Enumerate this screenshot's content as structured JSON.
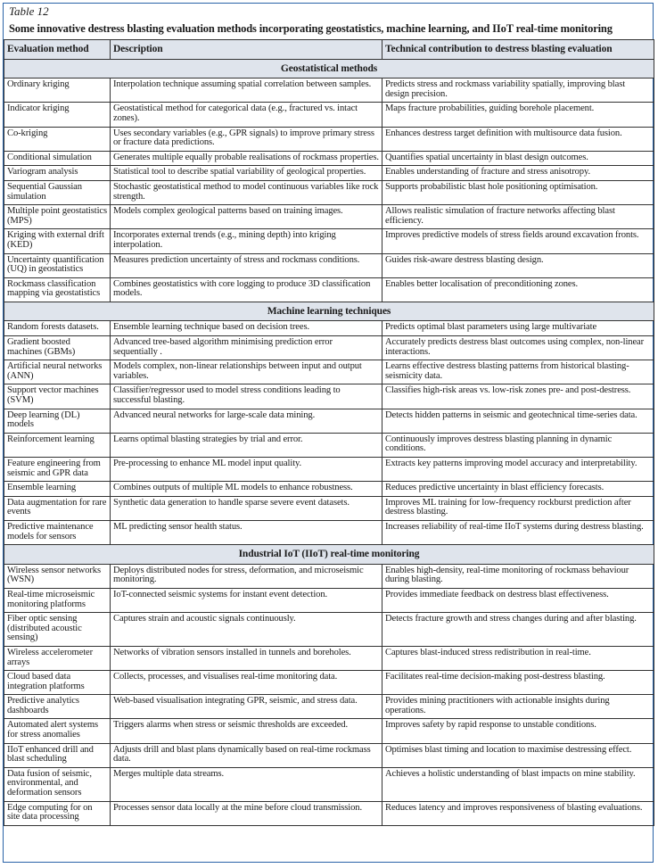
{
  "caption": {
    "label": "Table 12",
    "title": "Some innovative destress blasting evaluation methods incorporating geostatistics, machine learning, and IIoT real-time monitoring"
  },
  "colors": {
    "border": "#2a63a8",
    "header_bg": "#dfe4ec"
  },
  "columns": [
    "Evaluation method",
    "Description",
    "Technical contribution to destress blasting evaluation"
  ],
  "sections": [
    {
      "title": "Geostatistical methods",
      "rows": [
        [
          "Ordinary kriging",
          "Interpolation technique assuming spatial correlation between samples.",
          "Predicts stress and rockmass variability spatially, improving blast design precision."
        ],
        [
          "Indicator kriging",
          "Geostatistical method for categorical data (e.g., fractured vs. intact zones).",
          "Maps fracture probabilities, guiding borehole placement."
        ],
        [
          "Co-kriging",
          "Uses secondary variables (e.g., GPR signals) to improve primary stress or fracture data predictions.",
          "Enhances destress target definition with multisource data fusion."
        ],
        [
          "Conditional simulation",
          "Generates multiple equally probable realisations of rockmass properties.",
          "Quantifies spatial uncertainty in blast design outcomes."
        ],
        [
          "Variogram analysis",
          "Statistical tool to describe spatial variability of geological properties.",
          "Enables understanding of fracture and stress anisotropy."
        ],
        [
          "Sequential Gaussian simulation",
          "Stochastic geostatistical method to model continuous variables like rock strength.",
          "Supports probabilistic blast hole positioning optimisation."
        ],
        [
          "Multiple point geostatistics (MPS)",
          "Models complex geological patterns based on training images.",
          "Allows realistic simulation of fracture networks affecting blast efficiency."
        ],
        [
          "Kriging with external drift (KED)",
          "Incorporates external trends (e.g., mining depth) into kriging interpolation.",
          "Improves predictive models of stress fields around excavation fronts."
        ],
        [
          "Uncertainty quantification (UQ) in geostatistics",
          "Measures prediction uncertainty of stress and rockmass conditions.",
          "Guides risk-aware destress blasting design."
        ],
        [
          "Rockmass classification mapping via geostatistics",
          "Combines geostatistics with core logging to produce 3D classification models.",
          "Enables better localisation of preconditioning zones."
        ]
      ]
    },
    {
      "title": "Machine learning techniques",
      "rows": [
        [
          "Random forests datasets.",
          "Ensemble learning technique based on decision trees.",
          "Predicts optimal blast parameters using large multivariate"
        ],
        [
          "Gradient boosted machines (GBMs)",
          "Advanced tree-based algorithm minimising prediction error sequentially .",
          "Accurately predicts destress blast outcomes using complex, non-linear interactions."
        ],
        [
          "Artificial neural networks (ANN)",
          "Models complex, non-linear relationships between input and output variables.",
          "Learns effective destress blasting patterns from historical blasting-seismicity data."
        ],
        [
          "Support vector machines (SVM)",
          "Classifier/regressor used to model stress conditions leading to successful blasting.",
          "Classifies high-risk areas vs. low-risk zones pre- and post-destress."
        ],
        [
          "Deep learning (DL) models",
          "Advanced neural networks for large-scale data mining.",
          "Detects hidden patterns in seismic and geotechnical time-series data."
        ],
        [
          "Reinforcement learning",
          "Learns optimal blasting strategies by trial and error.",
          "Continuously improves destress blasting planning in dynamic conditions."
        ],
        [
          "Feature engineering from seismic and GPR data",
          "Pre-processing to enhance ML model input quality.",
          "Extracts key patterns improving model accuracy and interpretability."
        ],
        [
          "Ensemble learning",
          "Combines outputs of multiple ML models to enhance robustness.",
          "Reduces predictive uncertainty in blast efficiency forecasts."
        ],
        [
          "Data augmentation for rare events",
          "Synthetic data generation to handle sparse severe event datasets.",
          "Improves ML training for low-frequency rockburst prediction after destress blasting."
        ],
        [
          "Predictive maintenance models for sensors",
          "ML predicting sensor health status.",
          "Increases reliability of real-time IIoT systems during destress blasting."
        ]
      ]
    },
    {
      "title": "Industrial IoT (IIoT) real-time monitoring",
      "rows": [
        [
          "Wireless sensor networks (WSN)",
          "Deploys distributed nodes for stress, deformation, and microseismic monitoring.",
          "Enables high-density, real-time monitoring of rockmass behaviour during blasting."
        ],
        [
          "Real-time microseismic monitoring platforms",
          "IoT-connected seismic systems for instant event detection.",
          "Provides immediate feedback on destress blast effectiveness."
        ],
        [
          "Fiber optic sensing (distributed acoustic sensing)",
          "Captures strain and acoustic signals continuously.",
          "Detects fracture growth and stress changes during and after blasting."
        ],
        [
          "Wireless accelerometer arrays",
          "Networks of vibration sensors installed in tunnels and boreholes.",
          "Captures blast-induced stress redistribution in real-time."
        ],
        [
          "Cloud based data integration platforms",
          "Collects, processes, and visualises real-time monitoring data.",
          "Facilitates real-time decision-making post-destress blasting."
        ],
        [
          "Predictive analytics dashboards",
          "Web-based visualisation integrating GPR, seismic, and stress data.",
          "Provides mining practitioners with actionable insights during operations."
        ],
        [
          "Automated alert systems for stress anomalies",
          "Triggers alarms when stress or seismic thresholds are exceeded.",
          "Improves safety by rapid response to unstable conditions."
        ],
        [
          "IIoT enhanced drill and blast scheduling",
          "Adjusts drill and blast plans dynamically based on real-time rockmass data.",
          "Optimises blast timing and location to maximise destressing effect."
        ],
        [
          "Data fusion of seismic, environmental, and deformation sensors",
          "Merges multiple data streams.",
          "Achieves a holistic understanding of blast impacts on mine stability."
        ],
        [
          "Edge computing for on site data processing",
          "Processes sensor data locally at the mine before cloud transmission.",
          "Reduces latency and improves responsiveness of blasting evaluations."
        ]
      ]
    }
  ]
}
